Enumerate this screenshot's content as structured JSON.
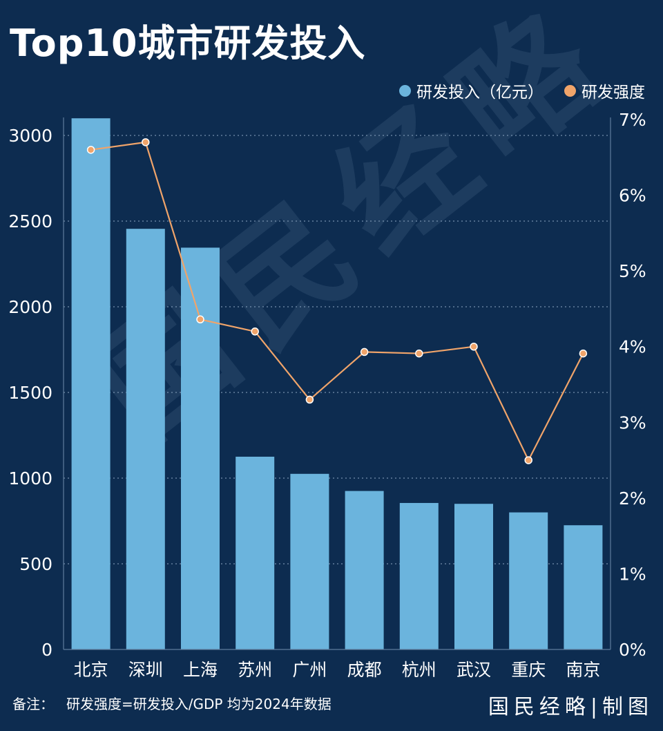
{
  "title": "Top10城市研发投入",
  "legend": {
    "bar_label": "研发投入（亿元）",
    "line_label": "研发强度"
  },
  "footnote": {
    "label": "备注：",
    "text": "研发强度=研发投入/GDP 均为2024年数据"
  },
  "brand": "国民经略|制图",
  "watermark": "国民经略",
  "colors": {
    "background": "#0d2c50",
    "bar": "#6bb4dd",
    "line": "#f0a46a",
    "grid": "#8fa9c4",
    "text": "#ffffff"
  },
  "chart_data": {
    "type": "bar",
    "categories": [
      "北京",
      "深圳",
      "上海",
      "苏州",
      "广州",
      "成都",
      "杭州",
      "武汉",
      "重庆",
      "南京"
    ],
    "series": [
      {
        "name": "研发投入（亿元）",
        "type": "bar",
        "axis": "left",
        "values": [
          3100,
          2455,
          2345,
          1125,
          1025,
          925,
          855,
          850,
          800,
          725
        ]
      },
      {
        "name": "研发强度",
        "type": "line",
        "axis": "right",
        "values": [
          6.6,
          6.7,
          4.36,
          4.2,
          3.3,
          3.93,
          3.91,
          4.0,
          2.5,
          3.91
        ]
      }
    ],
    "y_left": {
      "min": 0,
      "max": 3000,
      "ticks": [
        0,
        500,
        1000,
        1500,
        2000,
        2500,
        3000
      ]
    },
    "y_right": {
      "min": 0,
      "max": 7,
      "ticks": [
        "0%",
        "1%",
        "2%",
        "3%",
        "4%",
        "5%",
        "6%",
        "7%"
      ]
    },
    "grid": true,
    "legend_position": "top-right"
  }
}
